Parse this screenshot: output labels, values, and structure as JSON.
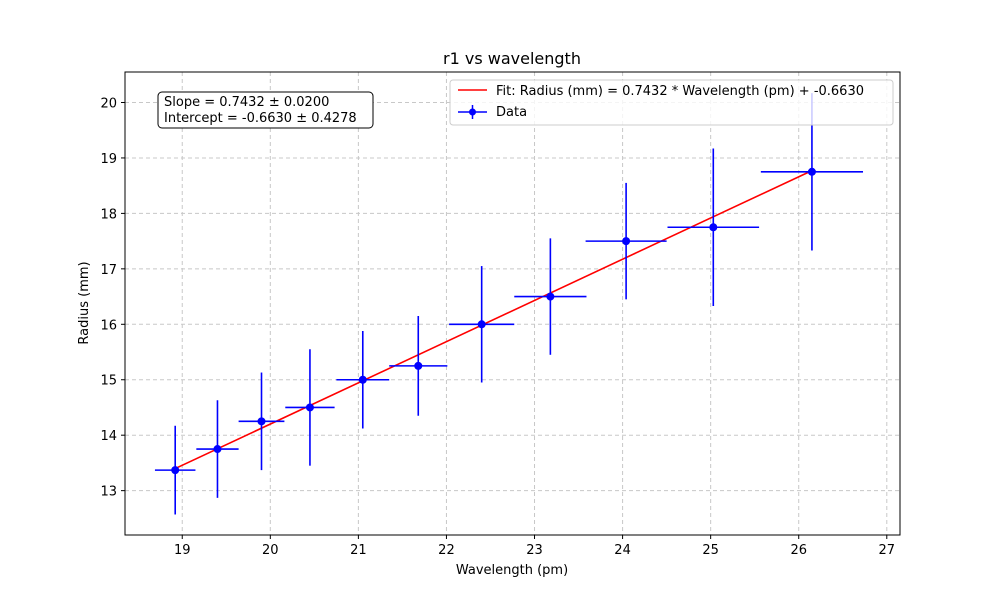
{
  "chart_data": {
    "type": "scatter",
    "title": "r1 vs wavelength",
    "xlabel": "Wavelength (pm)",
    "ylabel": "Radius (mm)",
    "xlim": [
      18.35,
      27.15
    ],
    "ylim": [
      12.2,
      20.55
    ],
    "xticks": [
      19,
      20,
      21,
      22,
      23,
      24,
      25,
      26,
      27
    ],
    "yticks": [
      13,
      14,
      15,
      16,
      17,
      18,
      19,
      20
    ],
    "grid": true,
    "legend_position": "top-right",
    "annotation_position": "top-left",
    "colors": {
      "data": "#0000ff",
      "fit": "#ff0000",
      "grid": "#c8c8c8"
    },
    "annotation": {
      "lines": [
        "Slope = 0.7432 ± 0.0200",
        "Intercept = -0.6630 ± 0.4278"
      ]
    },
    "legend": {
      "fit_label": "Fit: Radius (mm) = 0.7432 * Wavelength (pm) + -0.6630",
      "data_label": "Data"
    },
    "fit": {
      "slope": 0.7432,
      "intercept": -0.663,
      "x_range": [
        18.92,
        26.15
      ]
    },
    "series": [
      {
        "name": "Data",
        "points": [
          {
            "x": 18.92,
            "y": 13.37,
            "xerr": 0.23,
            "yerr": 0.8
          },
          {
            "x": 19.4,
            "y": 13.75,
            "xerr": 0.24,
            "yerr": 0.88
          },
          {
            "x": 19.9,
            "y": 14.25,
            "xerr": 0.26,
            "yerr": 0.88
          },
          {
            "x": 20.45,
            "y": 14.5,
            "xerr": 0.28,
            "yerr": 1.05
          },
          {
            "x": 21.05,
            "y": 15.0,
            "xerr": 0.3,
            "yerr": 0.88
          },
          {
            "x": 21.68,
            "y": 15.25,
            "xerr": 0.33,
            "yerr": 0.9
          },
          {
            "x": 22.4,
            "y": 16.0,
            "xerr": 0.37,
            "yerr": 1.05
          },
          {
            "x": 23.18,
            "y": 16.5,
            "xerr": 0.41,
            "yerr": 1.05
          },
          {
            "x": 24.04,
            "y": 17.5,
            "xerr": 0.46,
            "yerr": 1.05
          },
          {
            "x": 25.03,
            "y": 17.75,
            "xerr": 0.52,
            "yerr": 1.42
          },
          {
            "x": 26.15,
            "y": 18.75,
            "xerr": 0.58,
            "yerr": 1.42
          }
        ]
      }
    ]
  }
}
